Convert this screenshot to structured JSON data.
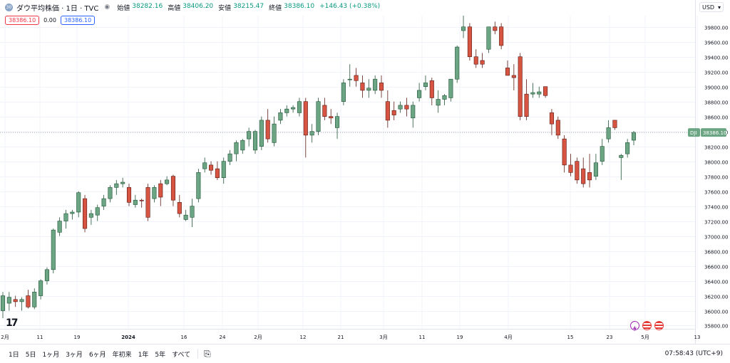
{
  "header": {
    "logo": "30",
    "title": "ダウ平均株価 · 1日 · TVC",
    "ohlc": [
      {
        "label": "始値",
        "value": "38282.16"
      },
      {
        "label": "高値",
        "value": "38406.20"
      },
      {
        "label": "安値",
        "value": "38215.47"
      },
      {
        "label": "終値",
        "value": "38386.10"
      }
    ],
    "change": "+146.43 (+0.38%)"
  },
  "quote": {
    "bid": "38386.10",
    "spread": "0.00",
    "ask": "38386.10"
  },
  "currency": "USD",
  "price_tag": {
    "symbol": "DJI",
    "value": "38386.10"
  },
  "bottom": {
    "ranges": [
      "1日",
      "5日",
      "1ヶ月",
      "3ヶ月",
      "6ヶ月",
      "年初来",
      "1年",
      "5年",
      "すべて"
    ],
    "clock": "07:58:43 (UTC+9)"
  },
  "colors": {
    "up": "#6ba583",
    "down": "#d75442",
    "border_up": "#225437",
    "border_down": "#5b1a13",
    "grid": "#f0f3fa"
  },
  "chart_data": {
    "type": "candlestick",
    "yaxis": {
      "min": 35800,
      "max": 39800,
      "step": 200,
      "position": "right",
      "min_plotted": 35757
    },
    "x_ticks": [
      "2月",
      "11",
      "19",
      "2024",
      "16",
      "24",
      "2月",
      "12",
      "21",
      "3月",
      "11",
      "19",
      "4月",
      "15",
      "23",
      "5月",
      "13"
    ],
    "last_price": 38386.1,
    "candles": [
      [
        36000,
        36250,
        35900,
        36200
      ],
      [
        36100,
        36250,
        36000,
        36180
      ],
      [
        36150,
        36200,
        36050,
        36120
      ],
      [
        36120,
        36180,
        36000,
        36150
      ],
      [
        36200,
        36280,
        36030,
        36050
      ],
      [
        36050,
        36300,
        36020,
        36250
      ],
      [
        36200,
        36420,
        36150,
        36400
      ],
      [
        36400,
        36580,
        36350,
        36550
      ],
      [
        36550,
        37100,
        36500,
        37080
      ],
      [
        37050,
        37250,
        37000,
        37200
      ],
      [
        37200,
        37350,
        37100,
        37300
      ],
      [
        37300,
        37350,
        37220,
        37320
      ],
      [
        37320,
        37600,
        37250,
        37580
      ],
      [
        37500,
        37550,
        37050,
        37100
      ],
      [
        37250,
        37350,
        37150,
        37300
      ],
      [
        37280,
        37420,
        37200,
        37380
      ],
      [
        37400,
        37550,
        37350,
        37500
      ],
      [
        37500,
        37680,
        37450,
        37650
      ],
      [
        37650,
        37750,
        37550,
        37700
      ],
      [
        37700,
        37780,
        37650,
        37720
      ],
      [
        37650,
        37700,
        37400,
        37450
      ],
      [
        37420,
        37550,
        37380,
        37480
      ],
      [
        37480,
        37500,
        37380,
        37470
      ],
      [
        37650,
        37700,
        37200,
        37250
      ],
      [
        37500,
        37680,
        37450,
        37650
      ],
      [
        37700,
        37750,
        37400,
        37520
      ],
      [
        37700,
        37800,
        37680,
        37750
      ],
      [
        37800,
        37820,
        37400,
        37480
      ],
      [
        37450,
        37550,
        37250,
        37300
      ],
      [
        37220,
        37350,
        37200,
        37280
      ],
      [
        37250,
        37500,
        37120,
        37400
      ],
      [
        37500,
        37900,
        37450,
        37850
      ],
      [
        37900,
        38050,
        37850,
        37980
      ],
      [
        37950,
        38000,
        37820,
        37880
      ],
      [
        37900,
        38000,
        37750,
        37780
      ],
      [
        37780,
        38050,
        37700,
        38000
      ],
      [
        38000,
        38150,
        37950,
        38100
      ],
      [
        38100,
        38280,
        38000,
        38250
      ],
      [
        38150,
        38300,
        38100,
        38280
      ],
      [
        38300,
        38450,
        38200,
        38400
      ],
      [
        38150,
        38420,
        38100,
        38400
      ],
      [
        38200,
        38600,
        38150,
        38550
      ],
      [
        38550,
        38700,
        38250,
        38300
      ],
      [
        38250,
        38600,
        38200,
        38500
      ],
      [
        38550,
        38700,
        38500,
        38650
      ],
      [
        38650,
        38750,
        38600,
        38700
      ],
      [
        38700,
        38750,
        38650,
        38720
      ],
      [
        38650,
        38850,
        38600,
        38800
      ],
      [
        38800,
        38850,
        38050,
        38350
      ],
      [
        38350,
        38500,
        38250,
        38400
      ],
      [
        38400,
        38850,
        38350,
        38800
      ],
      [
        38750,
        38850,
        38550,
        38600
      ],
      [
        38600,
        38700,
        38500,
        38580
      ],
      [
        38450,
        38650,
        38300,
        38600
      ],
      [
        38800,
        39100,
        38750,
        39050
      ],
      [
        39100,
        39300,
        39000,
        39100
      ],
      [
        39150,
        39250,
        39000,
        39080
      ],
      [
        39050,
        39150,
        38850,
        38950
      ],
      [
        38950,
        39100,
        38850,
        38980
      ],
      [
        38950,
        39150,
        38900,
        39100
      ],
      [
        39050,
        39150,
        38850,
        38950
      ],
      [
        38800,
        38950,
        38450,
        38550
      ],
      [
        38680,
        38800,
        38550,
        38620
      ],
      [
        38700,
        38800,
        38650,
        38750
      ],
      [
        38750,
        38850,
        38600,
        38700
      ],
      [
        38580,
        38800,
        38450,
        38750
      ],
      [
        38850,
        39050,
        38800,
        38950
      ],
      [
        39000,
        39150,
        38950,
        39050
      ],
      [
        39080,
        39120,
        38750,
        38850
      ],
      [
        38750,
        38950,
        38650,
        38830
      ],
      [
        38830,
        38900,
        38750,
        38880
      ],
      [
        38850,
        39100,
        38800,
        39100
      ],
      [
        39100,
        39550,
        39050,
        39530
      ],
      [
        39750,
        39950,
        39650,
        39800
      ],
      [
        39800,
        39850,
        39350,
        39400
      ],
      [
        39400,
        39500,
        39250,
        39300
      ],
      [
        39350,
        39450,
        39250,
        39300
      ],
      [
        39500,
        39800,
        39450,
        39800
      ],
      [
        39800,
        39870,
        39700,
        39750
      ],
      [
        39800,
        39850,
        39500,
        39550
      ],
      [
        39250,
        39350,
        39150,
        39150
      ],
      [
        39150,
        39300,
        38950,
        39120
      ],
      [
        39400,
        39450,
        38550,
        38600
      ],
      [
        38900,
        39100,
        38550,
        38600
      ],
      [
        38900,
        39050,
        38850,
        38920
      ],
      [
        38900,
        39000,
        38850,
        38930
      ],
      [
        39000,
        39000,
        38850,
        38880
      ],
      [
        38650,
        38700,
        38350,
        38500
      ],
      [
        38550,
        38600,
        38300,
        38350
      ],
      [
        38300,
        38350,
        37850,
        37950
      ],
      [
        37950,
        38100,
        37800,
        37850
      ],
      [
        38000,
        38050,
        37700,
        37750
      ],
      [
        37900,
        38050,
        37650,
        37700
      ],
      [
        37850,
        38100,
        37650,
        37750
      ],
      [
        37800,
        38100,
        37750,
        37980
      ],
      [
        38000,
        38300,
        37950,
        38200
      ],
      [
        38300,
        38550,
        38250,
        38450
      ],
      [
        38550,
        38550,
        38420,
        38450
      ],
      [
        38050,
        38100,
        37750,
        38080
      ],
      [
        38100,
        38300,
        38050,
        38250
      ],
      [
        38282.16,
        38406.2,
        38215.47,
        38386.1
      ]
    ]
  }
}
